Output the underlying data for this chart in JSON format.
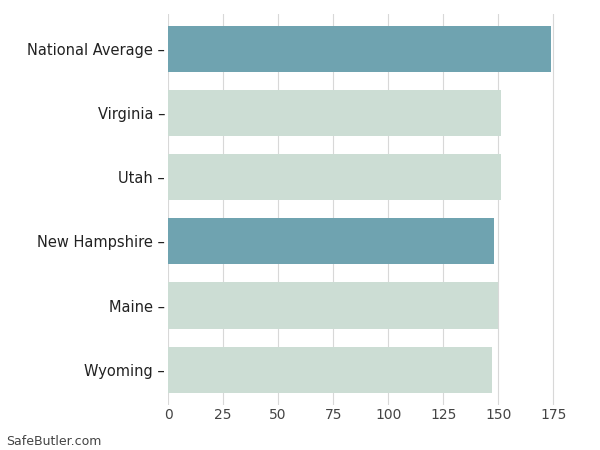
{
  "categories": [
    "National Average",
    "Virginia",
    "Utah",
    "New Hampshire",
    "Maine",
    "Wyoming"
  ],
  "values": [
    174,
    151,
    151,
    148,
    150,
    147
  ],
  "bar_colors": [
    "#6fa3b0",
    "#ccddd4",
    "#ccddd4",
    "#6fa3b0",
    "#ccddd4",
    "#ccddd4"
  ],
  "background_color": "#ffffff",
  "grid_color": "#d8d8d8",
  "xlim": [
    0,
    188
  ],
  "xticks": [
    0,
    25,
    50,
    75,
    100,
    125,
    150,
    175
  ],
  "watermark": "SafeButler.com",
  "bar_height": 0.72,
  "figsize": [
    6.0,
    4.5
  ],
  "dpi": 100,
  "label_fontsize": 10.5,
  "tick_fontsize": 10
}
